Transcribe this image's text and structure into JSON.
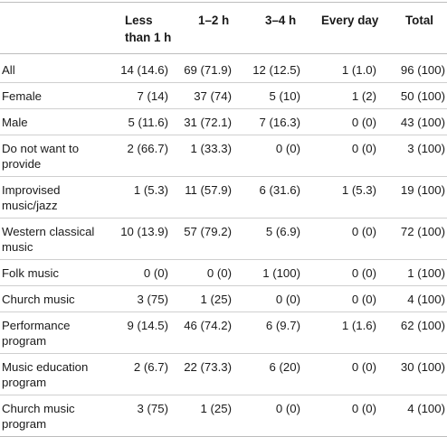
{
  "table": {
    "headers": [
      "",
      "Less than 1 h",
      "1–2 h",
      "3–4 h",
      "Every day",
      "Total"
    ],
    "rows": [
      {
        "label": "All",
        "cells": [
          "14 (14.6)",
          "69 (71.9)",
          "12 (12.5)",
          "1 (1.0)",
          "96 (100)"
        ]
      },
      {
        "label": "Female",
        "cells": [
          "7 (14)",
          "37 (74)",
          "5 (10)",
          "1 (2)",
          "50 (100)"
        ]
      },
      {
        "label": "Male",
        "cells": [
          "5 (11.6)",
          "31 (72.1)",
          "7 (16.3)",
          "0 (0)",
          "43 (100)"
        ]
      },
      {
        "label": "Do not want to provide",
        "cells": [
          "2 (66.7)",
          "1 (33.3)",
          "0 (0)",
          "0 (0)",
          "3 (100)"
        ]
      },
      {
        "label": "Improvised music/jazz",
        "cells": [
          "1 (5.3)",
          "11 (57.9)",
          "6 (31.6)",
          "1 (5.3)",
          "19 (100)"
        ]
      },
      {
        "label": "Western classical music",
        "cells": [
          "10 (13.9)",
          "57 (79.2)",
          "5 (6.9)",
          "0 (0)",
          "72 (100)"
        ]
      },
      {
        "label": "Folk music",
        "cells": [
          "0 (0)",
          "0 (0)",
          "1 (100)",
          "0 (0)",
          "1 (100)"
        ]
      },
      {
        "label": "Church music",
        "cells": [
          "3 (75)",
          "1 (25)",
          "0 (0)",
          "0 (0)",
          "4 (100)"
        ]
      },
      {
        "label": "Performance program",
        "cells": [
          "9 (14.5)",
          "46 (74.2)",
          "6 (9.7)",
          "1 (1.6)",
          "62 (100)"
        ]
      },
      {
        "label": "Music education program",
        "cells": [
          "2 (6.7)",
          "22 (73.3)",
          "6 (20)",
          "0 (0)",
          "30 (100)"
        ]
      },
      {
        "label": "Church music program",
        "cells": [
          "3 (75)",
          "1 (25)",
          "0 (0)",
          "0 (0)",
          "4 (100)"
        ]
      }
    ]
  }
}
